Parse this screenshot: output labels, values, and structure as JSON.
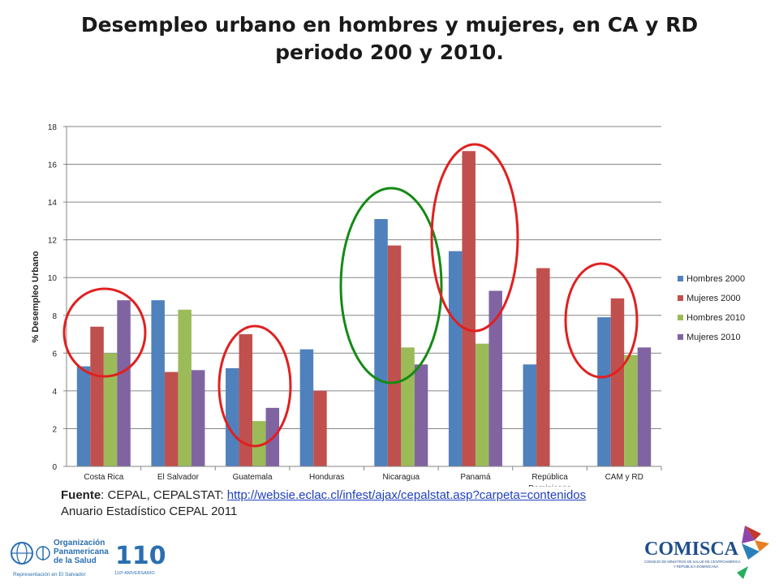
{
  "header": {
    "title_line1": "Desempleo urbano en hombres y mujeres, en CA y RD",
    "title_line2": "periodo 200 y 2010."
  },
  "chart_data": {
    "type": "bar",
    "categories": [
      "Costa Rica",
      "El Salvador",
      "Guatemala",
      "Honduras",
      "Nicaragua",
      "Panamá",
      "República Dominicana",
      "CAM y RD"
    ],
    "category_labels": [
      "Costa Rica",
      "El Salvador",
      "Guatemala",
      "Honduras",
      "Nicaragua",
      "Panamá",
      "República",
      "CAM y RD"
    ],
    "category_labels_line2": [
      "",
      "",
      "",
      "",
      "",
      "",
      "Dominicana",
      ""
    ],
    "series": [
      {
        "name": "Hombres 2000",
        "color": "#4f81bd",
        "values": [
          5.3,
          8.8,
          5.2,
          6.2,
          13.1,
          11.4,
          5.4,
          7.9
        ]
      },
      {
        "name": "Mujeres 2000",
        "color": "#c0504d",
        "values": [
          7.4,
          5.0,
          7.0,
          4.0,
          11.7,
          16.7,
          10.5,
          8.9
        ]
      },
      {
        "name": "Hombres 2010",
        "color": "#9bbb59",
        "values": [
          6.0,
          8.3,
          2.4,
          null,
          6.3,
          6.5,
          null,
          5.9
        ]
      },
      {
        "name": "Mujeres 2010",
        "color": "#8064a2",
        "values": [
          8.8,
          5.1,
          3.1,
          null,
          5.4,
          9.3,
          null,
          6.3
        ]
      }
    ],
    "ylabel": "% Desempleo Urbano",
    "xlabel": "",
    "ylim": [
      0,
      18
    ],
    "yticks": [
      "0",
      "2",
      "4",
      "6",
      "8",
      "10",
      "12",
      "14",
      "16",
      "18"
    ],
    "grid": true,
    "legend_position": "right",
    "highlight_colors": {
      "red": "#e02020",
      "green": "#158a15"
    }
  },
  "source": {
    "label": "Fuente",
    "text": ": CEPAL, CEPALSTAT: ",
    "link": "http://websie.eclac.cl/infest/ajax/cepalstat.asp?carpeta=contenidos",
    "line2": "Anuario Estadístico CEPAL  2011"
  },
  "logos": {
    "left_org": "Organización Panamericana de la Salud",
    "left_org_line1": "Organización",
    "left_org_line2": "Panamericana",
    "left_org_line3": "de la Salud",
    "left_sub": "Representación en El Salvador",
    "anniv_number": "110",
    "anniv_text": "110º ANIVERSARIO",
    "right_name": "COMISCA",
    "right_sub1": "CONSEJO DE MINISTROS DE SALUD DE CENTROAMÉRICA",
    "right_sub2": "Y REPÚBLICA DOMINICANA"
  }
}
